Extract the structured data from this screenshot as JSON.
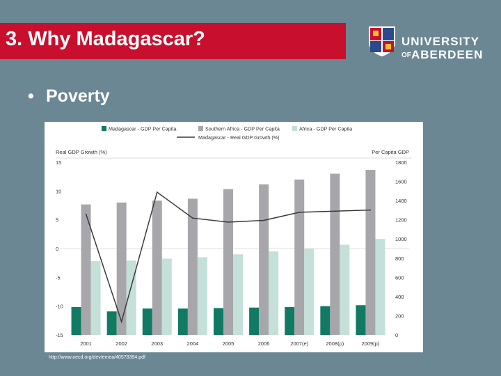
{
  "slide": {
    "title": "3. Why Madagascar?",
    "bullet": "Poverty",
    "source": "http://www.oecd.org/dev/emea/40578394.pdf"
  },
  "logo": {
    "line1": "UNIVERSITY",
    "of": "OF",
    "line2": "ABERDEEN",
    "crest_text": "1 4 9 5"
  },
  "colors": {
    "title_bg": "#c8102e",
    "background": "#6b8793",
    "madagascar": "#117a63",
    "southern_africa": "#a7a7ab",
    "africa": "#c4e0d8",
    "growth_line": "#3a3a3a"
  },
  "chart_data": {
    "type": "bar",
    "categories": [
      "2001",
      "2002",
      "2003",
      "2004",
      "2005",
      "2006",
      "2007(e)",
      "2008(p)",
      "2009(p)"
    ],
    "series": [
      {
        "name": "Madagascar - GDP Per Capita",
        "axis": "right",
        "values": [
          290,
          245,
          275,
          275,
          280,
          285,
          290,
          300,
          310
        ]
      },
      {
        "name": "Southern Africa - GDP Per Capita",
        "axis": "right",
        "values": [
          1360,
          1380,
          1400,
          1420,
          1520,
          1570,
          1620,
          1680,
          1720
        ]
      },
      {
        "name": "Africa - GDP Per Capita",
        "axis": "right",
        "values": [
          770,
          775,
          795,
          810,
          840,
          870,
          900,
          940,
          1000
        ]
      },
      {
        "name": "Madagascar - Real GDP Growth (%)",
        "type": "line",
        "axis": "left",
        "values": [
          6.0,
          -12.7,
          9.8,
          5.3,
          4.6,
          4.9,
          6.3,
          6.5,
          6.7
        ]
      }
    ],
    "ylabel": "Real GDP Growth (%)",
    "ylim": [
      -15,
      15
    ],
    "yticks": [
      15,
      10,
      5,
      0,
      -5,
      -10,
      -15
    ],
    "y2label": "Per Capita GDP",
    "y2lim": [
      0,
      1800
    ],
    "y2ticks": [
      1800,
      1600,
      1400,
      1200,
      1000,
      800,
      600,
      400,
      200,
      0
    ],
    "legend_position": "top"
  }
}
